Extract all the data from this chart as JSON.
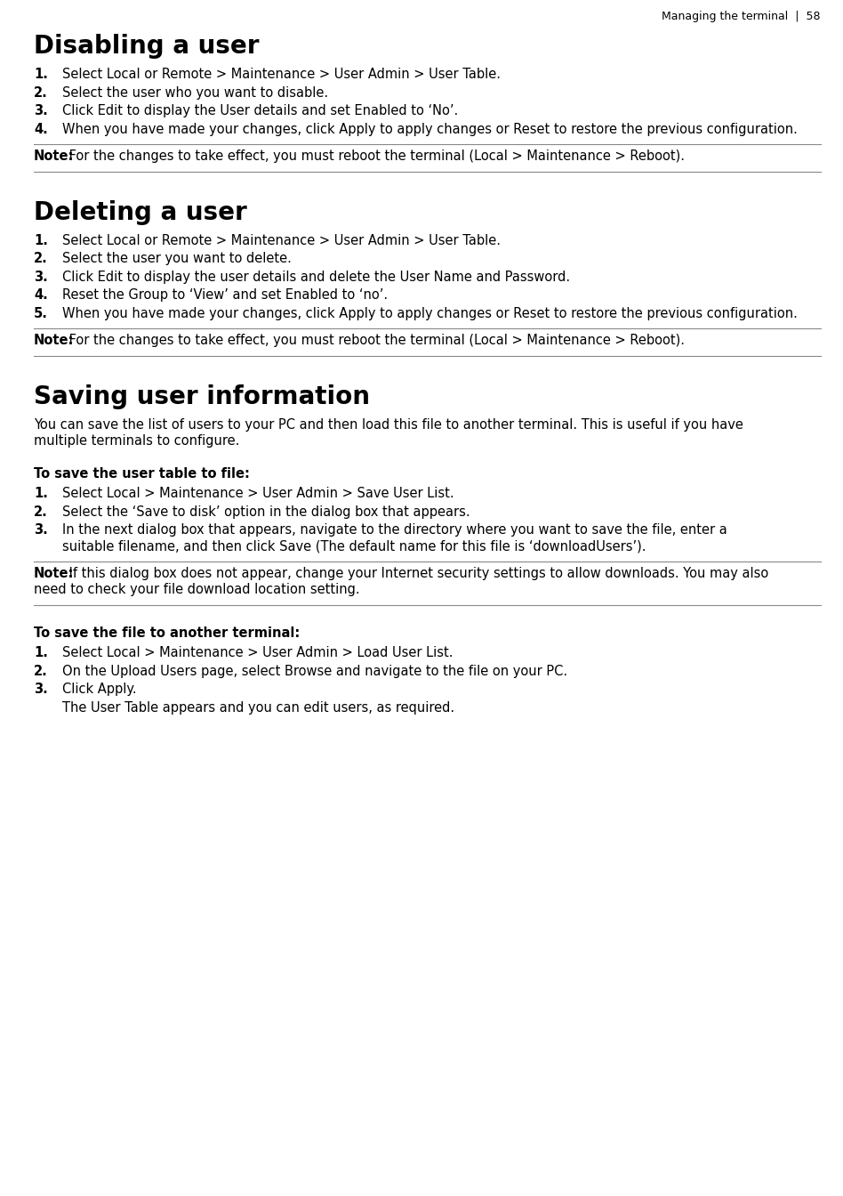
{
  "header": "Managing the terminal  |  58",
  "bg": "#ffffff",
  "fg": "#000000",
  "content": [
    {
      "type": "header",
      "text": "Managing the terminal  |  58"
    },
    {
      "type": "heading",
      "text": "Disabling a user"
    },
    {
      "type": "numbered",
      "n": "1.",
      "text": "Select Local or Remote > Maintenance > User Admin > User Table."
    },
    {
      "type": "numbered",
      "n": "2.",
      "text": "Select the user who you want to disable."
    },
    {
      "type": "numbered",
      "n": "3.",
      "text": "Click Edit to display the User details and set Enabled to ‘No’."
    },
    {
      "type": "numbered",
      "n": "4.",
      "text": "When you have made your changes, click Apply to apply changes or Reset to restore the previous configuration."
    },
    {
      "type": "hline"
    },
    {
      "type": "note",
      "bold": "Note:",
      "text": " For the changes to take effect, you must reboot the terminal (Local > Maintenance > Reboot)."
    },
    {
      "type": "hline"
    },
    {
      "type": "spacer"
    },
    {
      "type": "heading",
      "text": "Deleting a user"
    },
    {
      "type": "numbered",
      "n": "1.",
      "text": "Select Local or Remote > Maintenance > User Admin > User Table."
    },
    {
      "type": "numbered",
      "n": "2.",
      "text": "Select the user you want to delete."
    },
    {
      "type": "numbered",
      "n": "3.",
      "text": "Click Edit to display the user details and delete the User Name and Password. "
    },
    {
      "type": "numbered",
      "n": "4.",
      "text": "Reset the Group to ‘View’ and set Enabled to ‘no’."
    },
    {
      "type": "numbered",
      "n": "5.",
      "text": "When you have made your changes, click Apply to apply changes or Reset to restore the previous configuration."
    },
    {
      "type": "hline"
    },
    {
      "type": "note",
      "bold": "Note:",
      "text": " For the changes to take effect, you must reboot the terminal (Local > Maintenance > Reboot)."
    },
    {
      "type": "hline"
    },
    {
      "type": "spacer"
    },
    {
      "type": "heading",
      "text": "Saving user information"
    },
    {
      "type": "body",
      "text": "You can save the list of users to your PC and then load this file to another terminal. This is useful if you have multiple terminals to configure."
    },
    {
      "type": "spacer"
    },
    {
      "type": "bold_para",
      "text": "To save the user table to file:"
    },
    {
      "type": "numbered",
      "n": "1.",
      "text": "Select Local > Maintenance > User Admin > Save User List."
    },
    {
      "type": "numbered",
      "n": "2.",
      "text": "Select the ‘Save to disk’ option in the dialog box that appears."
    },
    {
      "type": "numbered",
      "n": "3.",
      "text": "In the next dialog box that appears, navigate to the directory where you want to save the file, enter a suitable filename, and then click Save (The default name for this file is ‘downloadUsers’)."
    },
    {
      "type": "hline"
    },
    {
      "type": "note",
      "bold": "Note:",
      "text": " If this dialog box does not appear, change your Internet security settings to allow downloads. You may also need to check your file download location setting."
    },
    {
      "type": "hline"
    },
    {
      "type": "spacer"
    },
    {
      "type": "bold_para",
      "text": "To save the file to another terminal:"
    },
    {
      "type": "numbered",
      "n": "1.",
      "text": "Select Local > Maintenance > User Admin > Load User List."
    },
    {
      "type": "numbered",
      "n": "2.",
      "text": "On the Upload Users page, select Browse and navigate to the file on your PC."
    },
    {
      "type": "numbered",
      "n": "3.",
      "text": "Click Apply."
    },
    {
      "type": "indent_body",
      "text": "The User Table appears and you can edit users, as required."
    }
  ]
}
